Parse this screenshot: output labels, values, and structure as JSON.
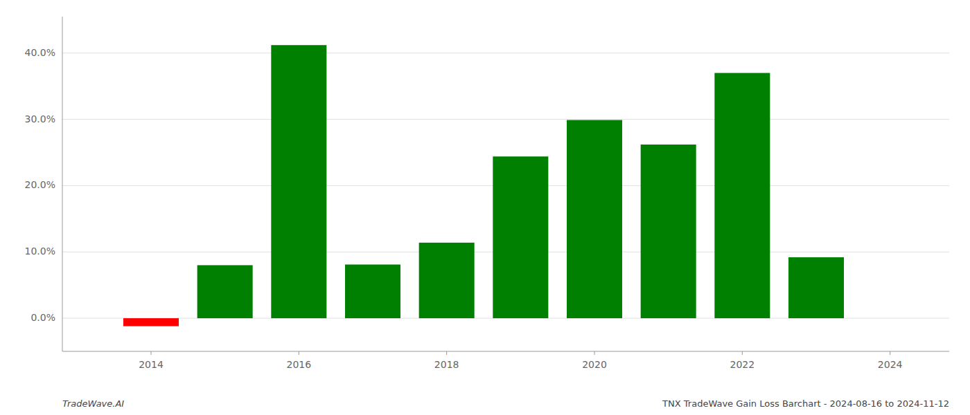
{
  "chart_data": {
    "type": "bar",
    "x": [
      2014,
      2015,
      2016,
      2017,
      2018,
      2019,
      2020,
      2021,
      2022,
      2023
    ],
    "values": [
      -0.012,
      0.08,
      0.412,
      0.081,
      0.114,
      0.244,
      0.299,
      0.262,
      0.37,
      0.092
    ],
    "colors": [
      "#ff0000",
      "#008000",
      "#008000",
      "#008000",
      "#008000",
      "#008000",
      "#008000",
      "#008000",
      "#008000",
      "#008000"
    ],
    "xlim": [
      2012.8,
      2024.8
    ],
    "xticks": [
      2014,
      2016,
      2018,
      2020,
      2022,
      2024
    ],
    "ylim": [
      -0.05,
      0.455
    ],
    "yticks": [
      {
        "value": 0.0,
        "label": "0.0%"
      },
      {
        "value": 0.1,
        "label": "10.0%"
      },
      {
        "value": 0.2,
        "label": "20.0%"
      },
      {
        "value": 0.3,
        "label": "30.0%"
      },
      {
        "value": 0.4,
        "label": "40.0%"
      }
    ],
    "grid": true,
    "annotations": [
      "TradeWave.AI",
      "TNX TradeWave Gain Loss Barchart - 2024-08-16 to 2024-11-12"
    ]
  }
}
